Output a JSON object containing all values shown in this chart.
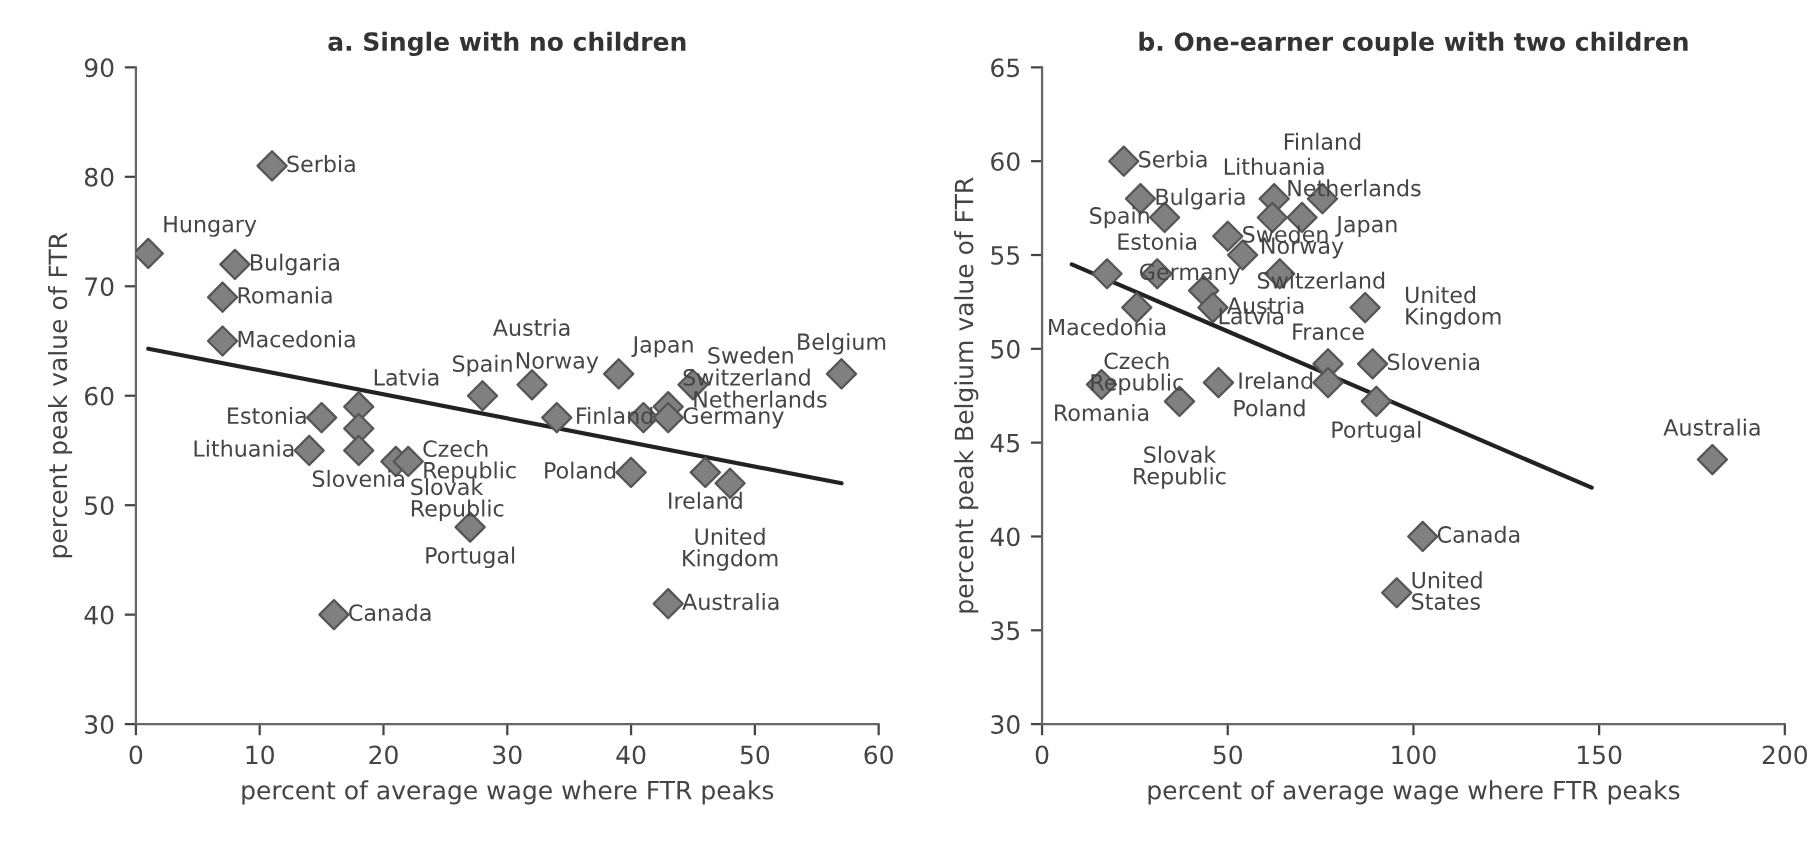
{
  "chart_data": [
    {
      "type": "scatter",
      "title": "a. Single with no children",
      "xlabel": "percent of average wage where FTR peaks",
      "ylabel": "percent peak value of FTR",
      "xlim": [
        0,
        60
      ],
      "xticks": [
        0,
        10,
        20,
        30,
        40,
        50,
        60
      ],
      "ylim": [
        30,
        90
      ],
      "yticks": [
        30,
        40,
        50,
        60,
        70,
        80,
        90
      ],
      "grid": false,
      "legend": false,
      "series": [
        {
          "marker": "diamond",
          "color": "#808080",
          "x": [
            1,
            11,
            8,
            7,
            7,
            15,
            14,
            18,
            18,
            18,
            21,
            22,
            27,
            16,
            28,
            32,
            34,
            39,
            40,
            41,
            43,
            43,
            45,
            46,
            48,
            57,
            43
          ],
          "values": [
            73,
            81,
            72,
            69,
            65,
            58,
            55,
            59,
            57,
            55,
            54,
            54,
            48,
            40,
            60,
            61,
            58,
            62,
            53,
            58,
            59,
            58,
            61,
            53,
            52,
            62,
            41
          ]
        },
        {
          "type": "line",
          "color": "#222222",
          "x": [
            1,
            57
          ],
          "values": [
            64.3,
            52
          ]
        }
      ],
      "annotations": [
        {
          "text": "Hungary",
          "x": 1,
          "y": 73
        },
        {
          "text": "Serbia",
          "x": 11,
          "y": 81
        },
        {
          "text": "Bulgaria",
          "x": 8,
          "y": 72
        },
        {
          "text": "Romania",
          "x": 7,
          "y": 69
        },
        {
          "text": "Macedonia",
          "x": 7,
          "y": 65
        },
        {
          "text": "Estonia",
          "x": 15,
          "y": 58
        },
        {
          "text": "Lithuania",
          "x": 14,
          "y": 55
        },
        {
          "text": "Latvia",
          "x": 18,
          "y": 59
        },
        {
          "text": "Slovenia",
          "x": 18,
          "y": 55
        },
        {
          "text": "Slovak\nRepublic",
          "x": 21,
          "y": 54
        },
        {
          "text": "Czech\nRepublic",
          "x": 22,
          "y": 54
        },
        {
          "text": "Portugal",
          "x": 27,
          "y": 48
        },
        {
          "text": "Canada",
          "x": 16,
          "y": 40
        },
        {
          "text": "Spain",
          "x": 28,
          "y": 60
        },
        {
          "text": "Austria",
          "x": 32,
          "y": 61
        },
        {
          "text": "Norway",
          "x": 34,
          "y": 58
        },
        {
          "text": "Japan",
          "x": 39,
          "y": 62
        },
        {
          "text": "Poland",
          "x": 40,
          "y": 53
        },
        {
          "text": "Germany",
          "x": 41,
          "y": 58
        },
        {
          "text": "Switzerland",
          "x": 43,
          "y": 59
        },
        {
          "text": "Finland",
          "x": 43,
          "y": 58
        },
        {
          "text": "Sweden",
          "x": 45,
          "y": 61
        },
        {
          "text": "Ireland",
          "x": 46,
          "y": 53
        },
        {
          "text": "United\nKingdom",
          "x": 48,
          "y": 52
        },
        {
          "text": "Belgium",
          "x": 57,
          "y": 62
        },
        {
          "text": "Netherlands",
          "x": 57,
          "y": 62
        },
        {
          "text": "Australia",
          "x": 43,
          "y": 41
        }
      ]
    },
    {
      "type": "scatter",
      "title": "b. One-earner couple with two children",
      "xlabel": "percent of average wage where FTR peaks",
      "ylabel": "percent peak Belgium value of FTR",
      "xlim": [
        0,
        200
      ],
      "xticks": [
        0,
        50,
        100,
        150,
        200
      ],
      "ylim": [
        30,
        65
      ],
      "yticks": [
        30,
        35,
        40,
        45,
        50,
        55,
        60,
        65
      ],
      "grid": false,
      "legend": false,
      "series": [
        {
          "marker": "diamond",
          "color": "#808080",
          "x": [
            22,
            26.5,
            33,
            31,
            17.5,
            25.5,
            16,
            43.5,
            50,
            54,
            62.5,
            62,
            75.5,
            70,
            64,
            46,
            87,
            77,
            77,
            89,
            90,
            47.5,
            37,
            180.5,
            102.5,
            95.5
          ],
          "values": [
            60,
            58,
            57,
            54,
            54,
            52.2,
            48.1,
            53.1,
            56,
            55,
            58,
            57,
            58,
            57,
            54,
            52.2,
            52.2,
            49.2,
            48.2,
            49.2,
            47.2,
            48.2,
            47.2,
            44.1,
            40,
            37
          ]
        },
        {
          "type": "line",
          "color": "#222222",
          "x": [
            8,
            148
          ],
          "values": [
            54.5,
            42.6
          ]
        }
      ],
      "annotations": [
        {
          "text": "Serbia",
          "x": 22,
          "y": 60
        },
        {
          "text": "Bulgaria",
          "x": 26.5,
          "y": 58
        },
        {
          "text": "Spain",
          "x": 33,
          "y": 57
        },
        {
          "text": "Estonia",
          "x": 31,
          "y": 54
        },
        {
          "text": "Macedonia",
          "x": 17.5,
          "y": 54
        },
        {
          "text": "Czech\nRepublic",
          "x": 25.5,
          "y": 52.2
        },
        {
          "text": "Romania",
          "x": 16,
          "y": 48.1
        },
        {
          "text": "Latvia",
          "x": 43.5,
          "y": 53.1
        },
        {
          "text": "Sweden",
          "x": 50,
          "y": 56
        },
        {
          "text": "Switzerland",
          "x": 54,
          "y": 55
        },
        {
          "text": "Lithuania",
          "x": 62.5,
          "y": 58
        },
        {
          "text": "Netherlands",
          "x": 62,
          "y": 57
        },
        {
          "text": "Japan",
          "x": 75.5,
          "y": 58
        },
        {
          "text": "Finland",
          "x": 75.5,
          "y": 58
        },
        {
          "text": "Norway",
          "x": 70,
          "y": 57
        },
        {
          "text": "Germany",
          "x": 64,
          "y": 54
        },
        {
          "text": "Austria",
          "x": 46,
          "y": 52.2
        },
        {
          "text": "United\nKingdom",
          "x": 87,
          "y": 52.2
        },
        {
          "text": "France",
          "x": 77,
          "y": 49.2
        },
        {
          "text": "Ireland",
          "x": 77,
          "y": 48.2
        },
        {
          "text": "Slovenia",
          "x": 89,
          "y": 49.2
        },
        {
          "text": "Portugal",
          "x": 90,
          "y": 47.2
        },
        {
          "text": "Poland",
          "x": 47.5,
          "y": 48.2
        },
        {
          "text": "Slovak\nRepublic",
          "x": 37,
          "y": 47.2
        },
        {
          "text": "Australia",
          "x": 180.5,
          "y": 44.1
        },
        {
          "text": "Canada",
          "x": 102.5,
          "y": 40
        },
        {
          "text": "United\nStates",
          "x": 95.5,
          "y": 37
        }
      ]
    }
  ]
}
